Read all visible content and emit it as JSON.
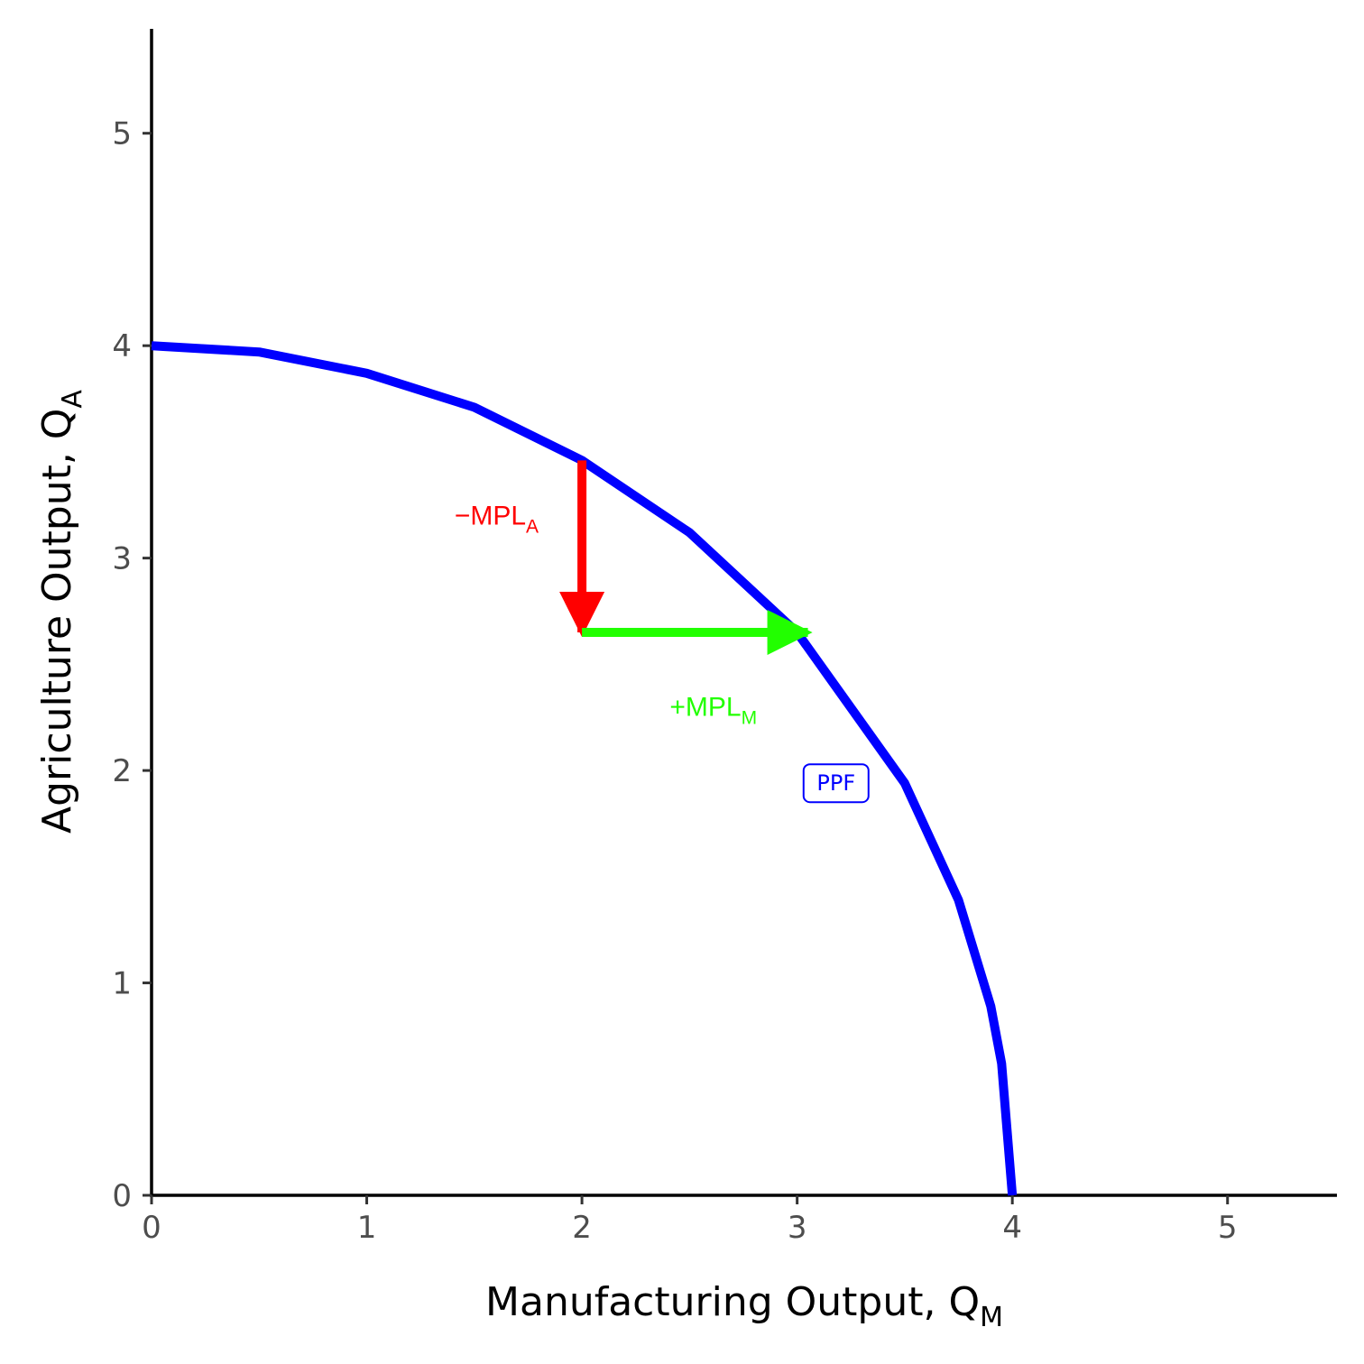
{
  "chart_data": {
    "type": "line",
    "xlabel": "Manufacturing Output, Q",
    "xlabel_sub": "M",
    "ylabel": "Agriculture Output, Q",
    "ylabel_sub": "A",
    "xlim": [
      0,
      5.5
    ],
    "ylim": [
      0,
      5.5
    ],
    "x_ticks": [
      0,
      1,
      2,
      3,
      4,
      5
    ],
    "y_ticks": [
      0,
      1,
      2,
      3,
      4,
      5
    ],
    "x_tick_labels": [
      "0",
      "1",
      "2",
      "3",
      "4",
      "5"
    ],
    "y_tick_labels": [
      "0",
      "1",
      "2",
      "3",
      "4",
      "5"
    ],
    "grid": false,
    "series": [
      {
        "name": "PPF",
        "color": "#0000ff",
        "shape": "quarter-ellipse",
        "x_intercept": 4,
        "y_intercept": 4,
        "x": [
          0,
          0.5,
          1,
          1.5,
          2,
          2.5,
          3,
          3.5,
          3.75,
          3.9,
          3.95,
          4
        ],
        "y": [
          4,
          3.97,
          3.87,
          3.71,
          3.46,
          3.12,
          2.65,
          1.94,
          1.39,
          0.89,
          0.62,
          0
        ]
      }
    ],
    "arrows": [
      {
        "id": "mpl-a",
        "from": [
          2,
          3.46
        ],
        "to": [
          2,
          2.65
        ],
        "color": "#ff0000"
      },
      {
        "id": "mpl-m",
        "from": [
          2,
          2.65
        ],
        "to": [
          3.05,
          2.65
        ],
        "color": "#22ff00"
      }
    ],
    "annotations": [
      {
        "id": "mpl-a-label",
        "text": "−MPL",
        "sub": "A",
        "x": 1.5,
        "y": 3.2,
        "color": "#ff0000"
      },
      {
        "id": "mpl-m-label",
        "text": "+MPL",
        "sub": "M",
        "x": 2.5,
        "y": 2.3,
        "color": "#22ff00"
      }
    ],
    "curve_label": {
      "text": "PPF",
      "x": 3.6,
      "y": 1.94,
      "color": "#0000ff"
    }
  }
}
